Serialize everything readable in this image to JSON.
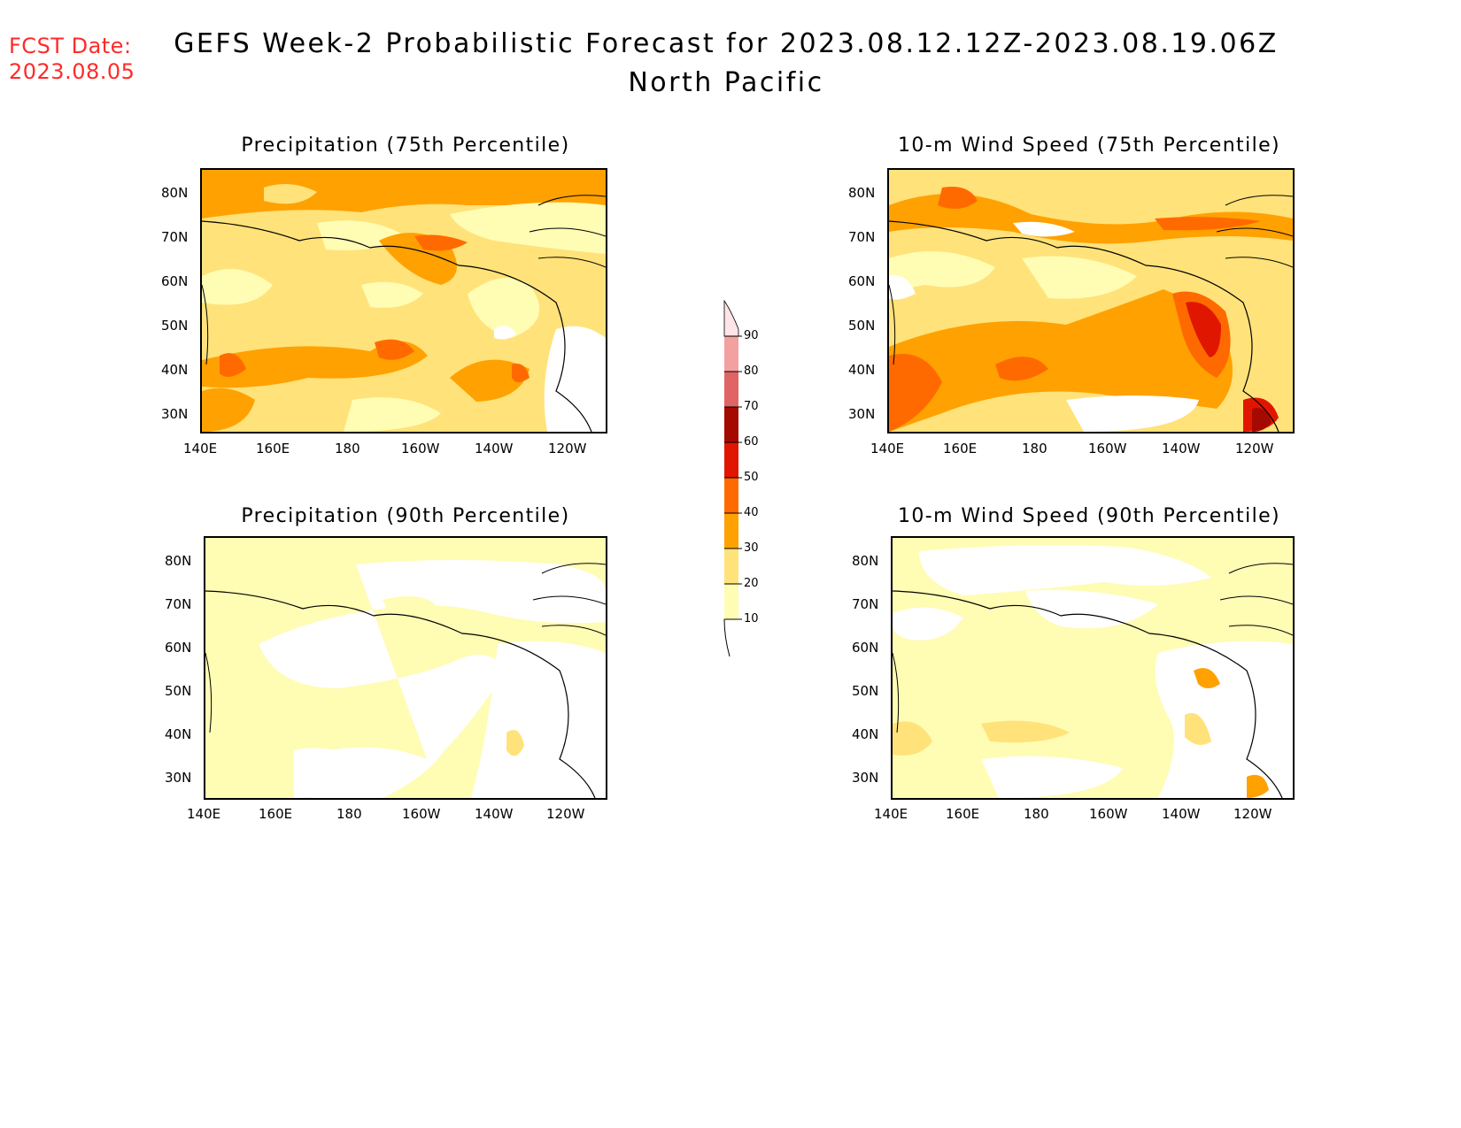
{
  "header": {
    "fcst_date_label": "FCST Date:",
    "fcst_date_value": "2023.08.05",
    "title": "GEFS Week-2 Probabilistic Forecast for 2023.08.12.12Z-2023.08.19.06Z",
    "subtitle": "North Pacific"
  },
  "panels": [
    {
      "title": "Precipitation (75th Percentile)"
    },
    {
      "title": "10-m Wind Speed (75th Percentile)"
    },
    {
      "title": "Precipitation (90th Percentile)"
    },
    {
      "title": "10-m Wind Speed (90th Percentile)"
    }
  ],
  "axes": {
    "lat_ticks": [
      "80N",
      "70N",
      "60N",
      "50N",
      "40N",
      "30N"
    ],
    "lon_ticks": [
      "140E",
      "160E",
      "180",
      "160W",
      "140W",
      "120W"
    ]
  },
  "colorbar": {
    "levels": [
      "90",
      "80",
      "70",
      "60",
      "50",
      "40",
      "30",
      "20",
      "10"
    ],
    "colors": {
      "c90": "#ffe4e8",
      "c80": "#f2a0a0",
      "c70": "#e06464",
      "c60": "#a50a00",
      "c50": "#e11600",
      "c40": "#ff6a00",
      "c30": "#ffa100",
      "c20": "#ffe27a",
      "c10": "#fffcb4"
    }
  }
}
